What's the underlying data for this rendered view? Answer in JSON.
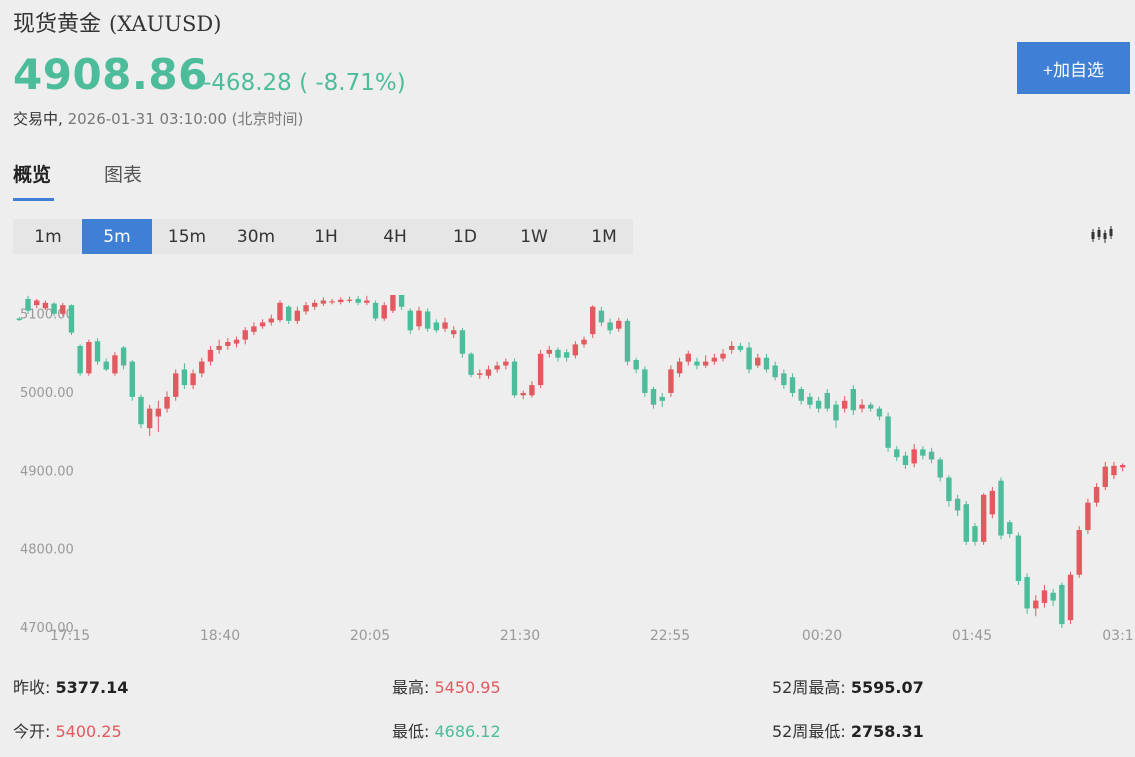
{
  "header": {
    "name": "现货黄金",
    "code": "(XAUUSD)",
    "price": "4908.86",
    "change": "-468.28 ( -8.71%)",
    "status_label": "交易中,",
    "status_time": "2026-01-31 03:10:00 (北京时间)",
    "add_button": "+加自选"
  },
  "tabs": [
    {
      "label": "概览",
      "active": true
    },
    {
      "label": "图表",
      "active": false
    }
  ],
  "periods": [
    "1m",
    "5m",
    "15m",
    "30m",
    "1H",
    "4H",
    "1D",
    "1W",
    "1M"
  ],
  "active_period": "5m",
  "colors": {
    "up": "#e05a5f",
    "down": "#4cbc9a",
    "accent": "#3f7fd6"
  },
  "chart_type_icon": "candlestick-chart-icon",
  "stats": {
    "prev_close_label": "昨收:",
    "prev_close": "5377.14",
    "open_label": "今开:",
    "open": "5400.25",
    "high_label": "最高:",
    "high": "5450.95",
    "low_label": "最低:",
    "low": "4686.12",
    "high52_label": "52周最高:",
    "high52": "5595.07",
    "low52_label": "52周最低:",
    "low52": "2758.31"
  },
  "chart_data": {
    "type": "candlestick",
    "interval": "5m",
    "y_ticks": [
      "4700.00",
      "4800.00",
      "4900.00",
      "5000.00",
      "5100.00"
    ],
    "ylim": [
      4700,
      5125
    ],
    "x_ticks": [
      "17:15",
      "18:40",
      "20:05",
      "21:30",
      "22:55",
      "00:20",
      "01:45",
      "03:1"
    ],
    "grid": false,
    "candles": [
      [
        5095,
        5093,
        5097,
        5092
      ],
      [
        5120,
        5105,
        5124,
        5101
      ],
      [
        5112,
        5118,
        5120,
        5108
      ],
      [
        5108,
        5115,
        5118,
        5106
      ],
      [
        5114,
        5101,
        5116,
        5098
      ],
      [
        5101,
        5112,
        5115,
        5098
      ],
      [
        5112,
        5077,
        5113,
        5074
      ],
      [
        5060,
        5025,
        5062,
        5022
      ],
      [
        5025,
        5065,
        5068,
        5022
      ],
      [
        5066,
        5040,
        5070,
        5036
      ],
      [
        5040,
        5030,
        5044,
        5028
      ],
      [
        5025,
        5048,
        5052,
        5022
      ],
      [
        5058,
        5035,
        5060,
        5030
      ],
      [
        5040,
        4995,
        5042,
        4990
      ],
      [
        4995,
        4960,
        4998,
        4955
      ],
      [
        4955,
        4980,
        4985,
        4945
      ],
      [
        4970,
        4980,
        4990,
        4950
      ],
      [
        4980,
        4995,
        5002,
        4975
      ],
      [
        4995,
        5025,
        5030,
        4990
      ],
      [
        5030,
        5010,
        5038,
        5005
      ],
      [
        5010,
        5025,
        5030,
        5005
      ],
      [
        5025,
        5040,
        5045,
        5020
      ],
      [
        5040,
        5055,
        5060,
        5035
      ],
      [
        5055,
        5060,
        5068,
        5050
      ],
      [
        5060,
        5065,
        5070,
        5055
      ],
      [
        5063,
        5068,
        5072,
        5058
      ],
      [
        5068,
        5080,
        5084,
        5062
      ],
      [
        5078,
        5085,
        5090,
        5074
      ],
      [
        5085,
        5090,
        5094,
        5082
      ],
      [
        5090,
        5095,
        5100,
        5086
      ],
      [
        5093,
        5115,
        5118,
        5090
      ],
      [
        5110,
        5092,
        5112,
        5088
      ],
      [
        5092,
        5105,
        5110,
        5088
      ],
      [
        5104,
        5112,
        5116,
        5100
      ],
      [
        5110,
        5115,
        5119,
        5106
      ],
      [
        5114,
        5118,
        5122,
        5111
      ],
      [
        5116,
        5117,
        5120,
        5113
      ],
      [
        5116,
        5119,
        5122,
        5113
      ],
      [
        5118,
        5119,
        5123,
        5115
      ],
      [
        5120,
        5115,
        5124,
        5112
      ],
      [
        5115,
        5118,
        5124,
        5112
      ],
      [
        5115,
        5095,
        5118,
        5092
      ],
      [
        5095,
        5112,
        5116,
        5092
      ],
      [
        5105,
        5125,
        5128,
        5102
      ],
      [
        5125,
        5110,
        5128,
        5106
      ],
      [
        5105,
        5080,
        5108,
        5075
      ],
      [
        5085,
        5105,
        5110,
        5080
      ],
      [
        5104,
        5082,
        5108,
        5078
      ],
      [
        5090,
        5080,
        5094,
        5077
      ],
      [
        5082,
        5090,
        5096,
        5078
      ],
      [
        5075,
        5080,
        5085,
        5070
      ],
      [
        5080,
        5050,
        5083,
        5045
      ],
      [
        5050,
        5023,
        5052,
        5020
      ],
      [
        5023,
        5025,
        5030,
        5018
      ],
      [
        5022,
        5030,
        5035,
        5018
      ],
      [
        5030,
        5035,
        5040,
        5026
      ],
      [
        5035,
        5040,
        5044,
        5030
      ],
      [
        5040,
        4997,
        5044,
        4994
      ],
      [
        4997,
        5000,
        5003,
        4992
      ],
      [
        4997,
        5010,
        5015,
        4994
      ],
      [
        5010,
        5050,
        5055,
        5006
      ],
      [
        5050,
        5055,
        5060,
        5045
      ],
      [
        5055,
        5045,
        5058,
        5040
      ],
      [
        5052,
        5045,
        5056,
        5040
      ],
      [
        5048,
        5062,
        5066,
        5044
      ],
      [
        5062,
        5068,
        5072,
        5058
      ],
      [
        5075,
        5110,
        5112,
        5070
      ],
      [
        5105,
        5090,
        5110,
        5085
      ],
      [
        5090,
        5080,
        5095,
        5075
      ],
      [
        5082,
        5092,
        5096,
        5078
      ],
      [
        5092,
        5040,
        5095,
        5035
      ],
      [
        5042,
        5030,
        5045,
        5025
      ],
      [
        5030,
        5000,
        5034,
        4995
      ],
      [
        5005,
        4985,
        5008,
        4980
      ],
      [
        4995,
        4990,
        5000,
        4982
      ],
      [
        5000,
        5030,
        5035,
        4995
      ],
      [
        5025,
        5040,
        5045,
        5020
      ],
      [
        5040,
        5050,
        5054,
        5035
      ],
      [
        5040,
        5035,
        5045,
        5030
      ],
      [
        5035,
        5040,
        5048,
        5032
      ],
      [
        5040,
        5045,
        5050,
        5036
      ],
      [
        5044,
        5050,
        5056,
        5040
      ],
      [
        5055,
        5060,
        5066,
        5050
      ],
      [
        5060,
        5055,
        5064,
        5052
      ],
      [
        5058,
        5030,
        5065,
        5025
      ],
      [
        5035,
        5045,
        5050,
        5032
      ],
      [
        5045,
        5030,
        5050,
        5026
      ],
      [
        5035,
        5020,
        5040,
        5016
      ],
      [
        5025,
        5010,
        5030,
        5005
      ],
      [
        5020,
        5000,
        5025,
        4995
      ],
      [
        5005,
        4990,
        5008,
        4985
      ],
      [
        4995,
        4985,
        5000,
        4980
      ],
      [
        4990,
        4980,
        4995,
        4975
      ],
      [
        5000,
        4980,
        5005,
        4976
      ],
      [
        4985,
        4965,
        4990,
        4955
      ],
      [
        4980,
        4990,
        4996,
        4975
      ],
      [
        5005,
        4978,
        5010,
        4972
      ],
      [
        4980,
        4985,
        4992,
        4975
      ],
      [
        4985,
        4980,
        4988,
        4976
      ],
      [
        4980,
        4970,
        4983,
        4965
      ],
      [
        4970,
        4930,
        4975,
        4925
      ],
      [
        4928,
        4918,
        4932,
        4913
      ],
      [
        4920,
        4908,
        4925,
        4903
      ],
      [
        4910,
        4928,
        4935,
        4905
      ],
      [
        4928,
        4920,
        4932,
        4915
      ],
      [
        4925,
        4915,
        4930,
        4910
      ],
      [
        4915,
        4892,
        4918,
        4887
      ],
      [
        4892,
        4862,
        4895,
        4855
      ],
      [
        4865,
        4850,
        4870,
        4843
      ],
      [
        4858,
        4810,
        4862,
        4806
      ],
      [
        4830,
        4810,
        4834,
        4805
      ],
      [
        4810,
        4870,
        4872,
        4806
      ],
      [
        4845,
        4875,
        4880,
        4840
      ],
      [
        4888,
        4818,
        4892,
        4813
      ],
      [
        4835,
        4820,
        4838,
        4815
      ],
      [
        4818,
        4760,
        4822,
        4755
      ],
      [
        4765,
        4725,
        4770,
        4718
      ],
      [
        4725,
        4735,
        4742,
        4715
      ],
      [
        4732,
        4748,
        4755,
        4726
      ],
      [
        4745,
        4735,
        4750,
        4728
      ],
      [
        4755,
        4705,
        4758,
        4700
      ],
      [
        4710,
        4768,
        4772,
        4705
      ],
      [
        4768,
        4825,
        4830,
        4764
      ],
      [
        4825,
        4860,
        4865,
        4820
      ],
      [
        4860,
        4880,
        4885,
        4855
      ],
      [
        4880,
        4906,
        4912,
        4876
      ],
      [
        4895,
        4907,
        4912,
        4890
      ],
      [
        4905,
        4908,
        4910,
        4900
      ]
    ]
  }
}
